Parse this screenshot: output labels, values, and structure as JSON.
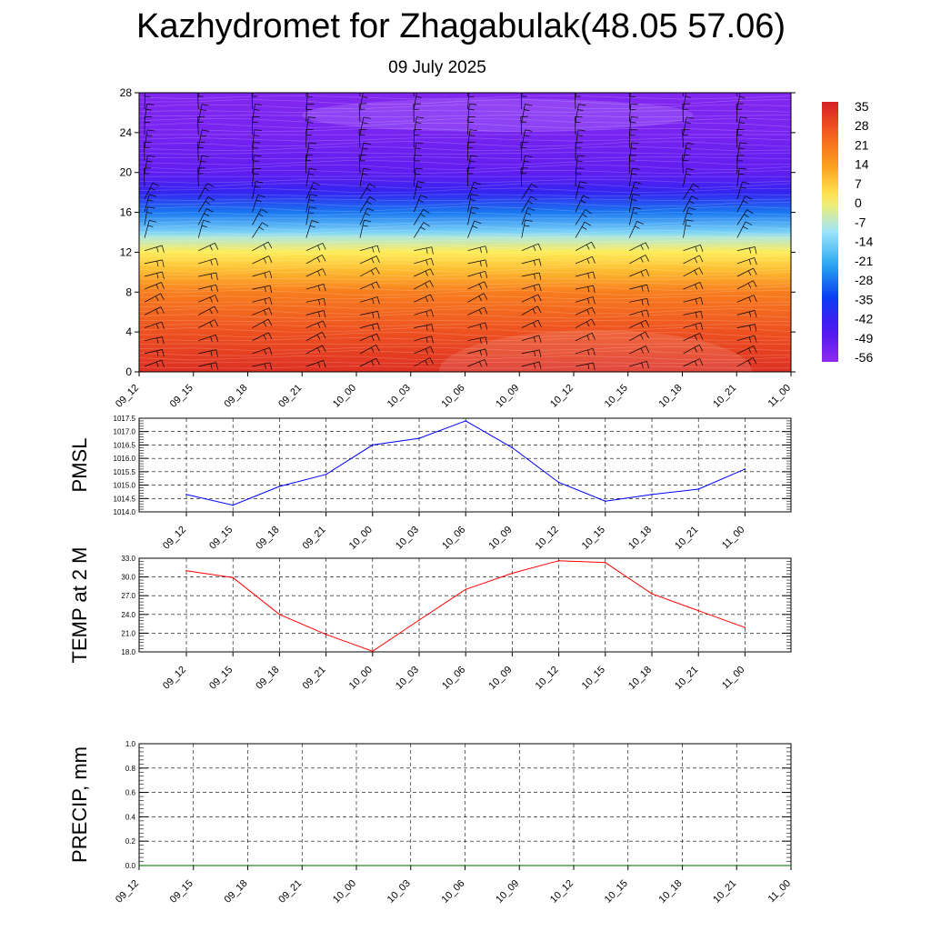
{
  "header": {
    "title": "Kazhydromet for Zhagabulak(48.05 57.06)",
    "date": "09 July 2025"
  },
  "colorbar": {
    "labels": [
      "35",
      "28",
      "21",
      "14",
      "7",
      "0",
      "-7",
      "-14",
      "-21",
      "-28",
      "-35",
      "-42",
      "-49",
      "-56"
    ]
  },
  "chart_data": [
    {
      "type": "heatmap",
      "title": "",
      "x_categories": [
        "09_12",
        "09_15",
        "09_18",
        "09_21",
        "10_00",
        "10_03",
        "10_06",
        "10_09",
        "10_12",
        "10_15",
        "10_18",
        "10_21",
        "11_00"
      ],
      "y_ticks": [
        0,
        4,
        8,
        12,
        16,
        20,
        24,
        28
      ],
      "ylim": [
        0,
        28
      ],
      "value_range": [
        -60,
        35
      ],
      "colors_that_matter": [
        "#d61f26",
        "#f5611e",
        "#fca21e",
        "#fff05a",
        "#9fe4fb",
        "#27a9f0",
        "#0a3ff2",
        "#4a16f0",
        "#8f2bf0"
      ],
      "profile_by_level": [
        {
          "level": 0,
          "value": 32
        },
        {
          "level": 4,
          "value": 26
        },
        {
          "level": 8,
          "value": 18
        },
        {
          "level": 10,
          "value": 8
        },
        {
          "level": 12,
          "value": 0
        },
        {
          "level": 13.5,
          "value": -10
        },
        {
          "level": 14,
          "value": -16
        },
        {
          "level": 16,
          "value": -30
        },
        {
          "level": 18,
          "value": -44
        },
        {
          "level": 20,
          "value": -52
        },
        {
          "level": 22,
          "value": -54
        },
        {
          "level": 24,
          "value": -56
        },
        {
          "level": 28,
          "value": -58
        }
      ],
      "grid": false
    },
    {
      "type": "line",
      "ylabel": "PMSL",
      "categories": [
        "09_12",
        "09_15",
        "09_18",
        "09_21",
        "10_00",
        "10_03",
        "10_06",
        "10_09",
        "10_12",
        "10_15",
        "10_18",
        "10_21",
        "11_00"
      ],
      "series": [
        {
          "values": [
            1014.65,
            1014.25,
            1014.95,
            1015.4,
            1016.5,
            1016.75,
            1017.4,
            1016.4,
            1015.1,
            1014.4,
            1014.65,
            1014.85,
            1015.6
          ],
          "color": "#0000ff"
        }
      ],
      "yticks": [
        "1014.0",
        "1014.5",
        "1015.0",
        "1015.5",
        "1016.0",
        "1016.5",
        "1017.0",
        "1017.5"
      ],
      "ylim": [
        1014.0,
        1017.5
      ],
      "grid": true
    },
    {
      "type": "line",
      "ylabel": "TEMP at 2 M",
      "categories": [
        "09_12",
        "09_15",
        "09_18",
        "09_21",
        "10_00",
        "10_03",
        "10_06",
        "10_09",
        "10_12",
        "10_15",
        "10_18",
        "10_21",
        "11_00"
      ],
      "series": [
        {
          "values": [
            31.0,
            29.9,
            24.0,
            20.8,
            18.1,
            23.1,
            28.0,
            30.6,
            32.6,
            32.3,
            27.3,
            24.6,
            21.9
          ],
          "color": "#ff0000"
        }
      ],
      "yticks": [
        "18.0",
        "21.0",
        "24.0",
        "27.0",
        "30.0",
        "33.0"
      ],
      "ylim": [
        18.0,
        33.0
      ],
      "grid": true
    },
    {
      "type": "line",
      "ylabel": "PRECIP, mm",
      "categories": [
        "09_12",
        "09_15",
        "09_18",
        "09_21",
        "10_00",
        "10_03",
        "10_06",
        "10_09",
        "10_12",
        "10_15",
        "10_18",
        "10_21",
        "11_00"
      ],
      "series": [
        {
          "values": [
            0,
            0,
            0,
            0,
            0,
            0,
            0,
            0,
            0,
            0,
            0,
            0,
            0
          ],
          "color": "#006400"
        }
      ],
      "yticks": [
        "0.0",
        "0.2",
        "0.4",
        "0.6",
        "0.8",
        "1.0"
      ],
      "ylim": [
        0,
        1.0
      ],
      "grid": true
    }
  ]
}
